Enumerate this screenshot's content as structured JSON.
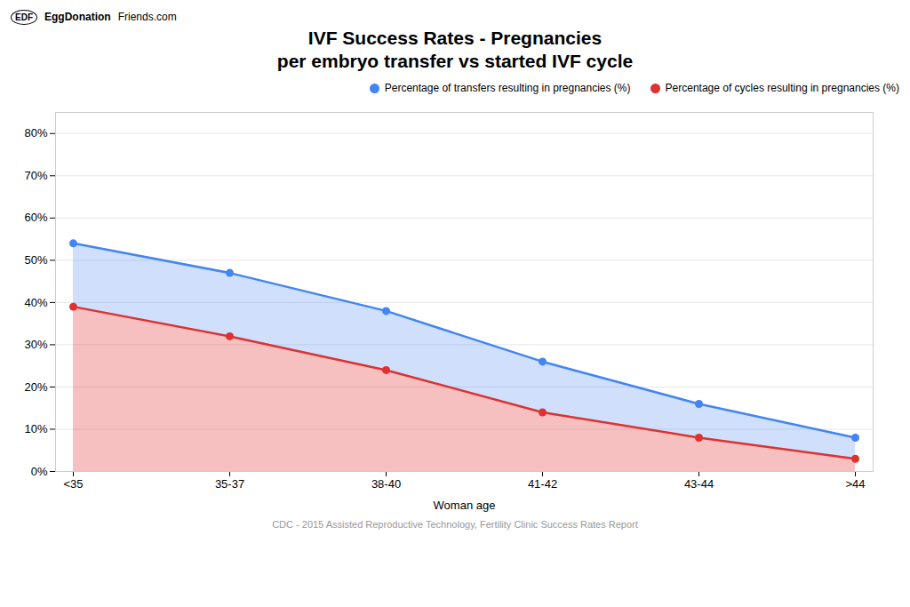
{
  "chart_data": {
    "type": "area",
    "title": "IVF Success Rates - Pregnancies",
    "subtitle": "per embryo transfer vs started IVF cycle",
    "xlabel": "Woman age",
    "annotations": [
      "EDF",
      "EggDonation",
      "Friends.com",
      "CDC - 2015 Assisted Reproductive Technology, Fertility Clinic Success Rates Report"
    ],
    "categories": [
      "<35",
      "35-37",
      "38-40",
      "41-42",
      "43-44",
      ">44"
    ],
    "series": [
      {
        "name": "Percentage of transfers resulting in pregnancies (%)",
        "color": "#4285f4",
        "values": [
          54,
          47,
          38,
          26,
          16,
          8
        ]
      },
      {
        "name": "Percentage of cycles resulting in pregnancies (%)",
        "color": "#e03030",
        "values": [
          39,
          32,
          24,
          14,
          8,
          3
        ]
      }
    ],
    "ylim": [
      0,
      85
    ],
    "yticks": [
      {
        "value": 0,
        "label": "0%"
      },
      {
        "value": 10,
        "label": "10%"
      },
      {
        "value": 20,
        "label": "20%"
      },
      {
        "value": 30,
        "label": "30%"
      },
      {
        "value": 40,
        "label": "40%"
      },
      {
        "value": 50,
        "label": "50%"
      },
      {
        "value": 60,
        "label": "60%"
      },
      {
        "value": 70,
        "label": "70%"
      },
      {
        "value": 80,
        "label": "80%"
      }
    ],
    "grid": true,
    "legend": "top-right",
    "marker": "circle"
  }
}
